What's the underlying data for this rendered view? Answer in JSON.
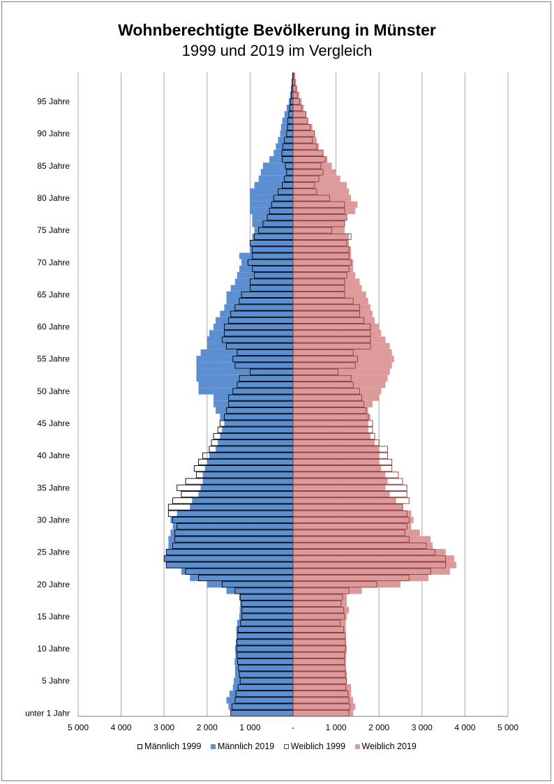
{
  "chart_data": {
    "type": "bar",
    "orientation": "horizontal-population-pyramid",
    "title": "Wohnberechtigte Bevölkerung in Münster",
    "subtitle": "1999 und 2019 im Vergleich",
    "xlim": [
      -5000,
      5000
    ],
    "x_ticks": [
      -5000,
      -4000,
      -3000,
      -2000,
      -1000,
      0,
      1000,
      2000,
      3000,
      4000,
      5000
    ],
    "x_tick_labels": [
      "5 000",
      "4 000",
      "3 000",
      "2 000",
      "1 000",
      "-",
      "1 000",
      "2 000",
      "3 000",
      "4 000",
      "5 000"
    ],
    "grid": "vertical",
    "legend_position": "bottom",
    "age_range": [
      0,
      99
    ],
    "y_ticks": [
      0,
      5,
      10,
      15,
      20,
      25,
      30,
      35,
      40,
      45,
      50,
      55,
      60,
      65,
      70,
      75,
      80,
      85,
      90,
      95
    ],
    "y_tick_labels": [
      "unter 1 Jahr",
      "5 Jahre",
      "10 Jahre",
      "15 Jahre",
      "20 Jahre",
      "25 Jahre",
      "30 Jahre",
      "35 Jahre",
      "40 Jahre",
      "45 Jahre",
      "50 Jahre",
      "55 Jahre",
      "60 Jahre",
      "65 Jahre",
      "70 Jahre",
      "75 Jahre",
      "80 Jahre",
      "85 Jahre",
      "90 Jahre",
      "95 Jahre"
    ],
    "colors": {
      "male_2019": "#5b8fd1",
      "female_2019": "#dd9a9a",
      "male_1999_edge": "#000000",
      "female_1999_edge": "#8b3a3a",
      "grid": "#a6a6a6",
      "axis": "#7f7f7f"
    },
    "series": [
      {
        "name": "Männlich 1999",
        "style": "outline",
        "side": "left",
        "values": [
          1450,
          1420,
          1350,
          1330,
          1280,
          1230,
          1250,
          1270,
          1290,
          1300,
          1310,
          1310,
          1300,
          1280,
          1220,
          1190,
          1190,
          1200,
          1230,
          1350,
          1650,
          2200,
          2500,
          2950,
          3000,
          2950,
          2800,
          2750,
          2750,
          2700,
          2800,
          2900,
          2900,
          2800,
          2600,
          2700,
          2500,
          2250,
          2300,
          2200,
          2100,
          1950,
          1900,
          1850,
          1750,
          1700,
          1600,
          1550,
          1500,
          1500,
          1400,
          1300,
          1250,
          1000,
          1350,
          1400,
          1300,
          1550,
          1650,
          1600,
          1600,
          1500,
          1450,
          1350,
          1250,
          1200,
          1000,
          1000,
          900,
          950,
          1050,
          950,
          950,
          1000,
          900,
          800,
          700,
          600,
          550,
          500,
          450,
          350,
          250,
          200,
          150,
          180,
          250,
          260,
          240,
          200,
          150,
          130,
          120,
          100,
          80,
          60,
          40,
          30,
          20,
          10
        ]
      },
      {
        "name": "Männlich 2019",
        "style": "solid",
        "side": "left",
        "values": [
          1450,
          1500,
          1550,
          1480,
          1400,
          1380,
          1350,
          1350,
          1360,
          1340,
          1350,
          1330,
          1300,
          1320,
          1300,
          1250,
          1240,
          1230,
          1250,
          1550,
          2000,
          2400,
          2600,
          2950,
          3000,
          2950,
          2900,
          2900,
          2850,
          2800,
          2850,
          2700,
          2400,
          2350,
          2200,
          2150,
          2100,
          2100,
          2050,
          2000,
          1950,
          1800,
          1750,
          1700,
          1650,
          1600,
          1700,
          1800,
          1850,
          1850,
          2200,
          2200,
          2250,
          2250,
          2250,
          2250,
          2150,
          2000,
          2000,
          1950,
          1850,
          1800,
          1700,
          1600,
          1550,
          1550,
          1450,
          1350,
          1300,
          1250,
          1200,
          1250,
          1000,
          1000,
          950,
          900,
          950,
          950,
          1000,
          1000,
          1000,
          1000,
          900,
          800,
          750,
          700,
          550,
          450,
          400,
          350,
          300,
          280,
          250,
          200,
          150,
          100,
          70,
          50,
          30,
          20
        ]
      },
      {
        "name": "Weiblich 1999",
        "style": "outline",
        "side": "right",
        "values": [
          1300,
          1320,
          1300,
          1280,
          1230,
          1240,
          1220,
          1220,
          1200,
          1200,
          1220,
          1220,
          1220,
          1180,
          1100,
          1200,
          1180,
          1120,
          1150,
          1300,
          1950,
          2700,
          3200,
          3550,
          3550,
          3300,
          3100,
          2700,
          2600,
          2650,
          2700,
          2650,
          2550,
          2700,
          2650,
          2650,
          2550,
          2450,
          2300,
          2300,
          2200,
          2200,
          2000,
          1900,
          1850,
          1850,
          1750,
          1700,
          1650,
          1600,
          1550,
          1400,
          1350,
          1050,
          1450,
          1500,
          1400,
          1800,
          1800,
          1800,
          1800,
          1650,
          1550,
          1550,
          1400,
          1200,
          1200,
          1200,
          1250,
          1300,
          1350,
          1300,
          1300,
          1250,
          1350,
          900,
          1200,
          1250,
          1200,
          1200,
          850,
          550,
          500,
          600,
          700,
          650,
          750,
          700,
          550,
          450,
          500,
          400,
          340,
          300,
          200,
          150,
          100,
          70,
          40,
          20
        ]
      },
      {
        "name": "Weiblich 2019",
        "style": "solid",
        "side": "right",
        "values": [
          1400,
          1450,
          1400,
          1350,
          1350,
          1250,
          1250,
          1220,
          1230,
          1240,
          1250,
          1230,
          1220,
          1230,
          1230,
          1250,
          1300,
          1250,
          1250,
          1600,
          2500,
          3150,
          3650,
          3800,
          3750,
          3550,
          3250,
          3200,
          2950,
          2750,
          2800,
          2750,
          2550,
          2400,
          2250,
          2150,
          2200,
          2150,
          2050,
          2000,
          2000,
          2000,
          1900,
          1800,
          1750,
          1750,
          1800,
          1750,
          1850,
          2000,
          2050,
          2150,
          2200,
          2250,
          2300,
          2350,
          2300,
          2250,
          2150,
          2050,
          2000,
          1900,
          1850,
          1800,
          1750,
          1700,
          1600,
          1550,
          1450,
          1400,
          1400,
          1350,
          1350,
          1300,
          1300,
          1200,
          1200,
          1250,
          1450,
          1500,
          1350,
          1300,
          1250,
          1100,
          1000,
          900,
          800,
          700,
          600,
          550,
          500,
          450,
          350,
          300,
          250,
          200,
          150,
          100,
          70,
          50
        ]
      }
    ]
  }
}
